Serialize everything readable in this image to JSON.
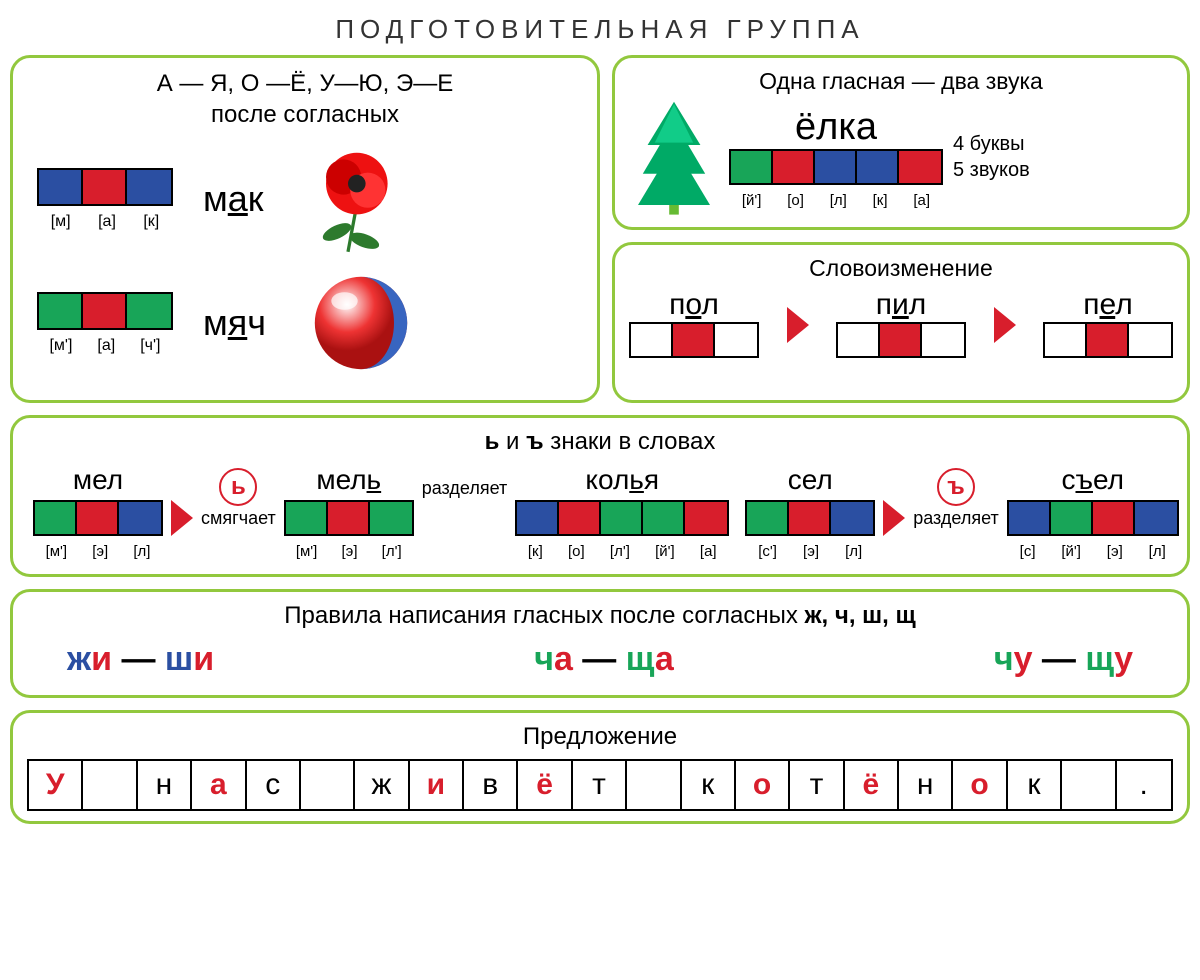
{
  "colors": {
    "border_green": "#92c83e",
    "blue": "#2b4fa2",
    "red": "#d81e2c",
    "green": "#18a558",
    "teal": "#0f8a6f",
    "white": "#ffffff",
    "black": "#000000"
  },
  "title": "ПОДГОТОВИТЕЛЬНАЯ ГРУППА",
  "panel1": {
    "heading_l1": "А — Я, О —Ё, У—Ю, Э—Е",
    "heading_l2": "после согласных",
    "row1": {
      "word_pre": "м",
      "word_u": "а",
      "word_post": "к",
      "cells": [
        "#2b4fa2",
        "#d81e2c",
        "#2b4fa2"
      ],
      "sounds": [
        "[м]",
        "[а]",
        "[к]"
      ]
    },
    "row2": {
      "word_pre": "м",
      "word_u": "я",
      "word_post": "ч",
      "cells": [
        "#18a558",
        "#d81e2c",
        "#18a558"
      ],
      "sounds": [
        "[м']",
        "[а]",
        "[ч']"
      ]
    }
  },
  "panel2": {
    "heading": "Одна гласная — два звука",
    "word": "ёлка",
    "cells": [
      "#18a558",
      "#d81e2c",
      "#2b4fa2",
      "#2b4fa2",
      "#d81e2c"
    ],
    "sounds": [
      "[й']",
      "[о]",
      "[л]",
      "[к]",
      "[а]"
    ],
    "info_l1": "4 буквы",
    "info_l2": "5 звуков"
  },
  "panel3": {
    "heading": "Словоизменение",
    "items": [
      {
        "pre": "п",
        "u": "о",
        "post": "л",
        "cells": [
          "#ffffff",
          "#d81e2c",
          "#ffffff"
        ]
      },
      {
        "pre": "п",
        "u": "и",
        "post": "л",
        "cells": [
          "#ffffff",
          "#d81e2c",
          "#ffffff"
        ]
      },
      {
        "pre": "п",
        "u": "е",
        "post": "л",
        "cells": [
          "#ffffff",
          "#d81e2c",
          "#ffffff"
        ]
      }
    ]
  },
  "panel4": {
    "heading_pre": "",
    "heading_b1": "ь",
    "heading_mid": " и ",
    "heading_b2": "ъ",
    "heading_post": " знаки в словах",
    "soft": {
      "letter": "ь",
      "label": "смягчает"
    },
    "sep1": {
      "label": "разделяет"
    },
    "hard": {
      "letter": "ъ",
      "label": "разделяет"
    },
    "words": [
      {
        "w": "мел",
        "u_idx": -1,
        "cells": [
          "#18a558",
          "#d81e2c",
          "#2b4fa2"
        ],
        "sounds": [
          "[м']",
          "[э]",
          "[л]"
        ]
      },
      {
        "w_pre": "мел",
        "w_u": "ь",
        "w_post": "",
        "cells": [
          "#18a558",
          "#d81e2c",
          "#18a558"
        ],
        "sounds": [
          "[м']",
          "[э]",
          "[л']"
        ]
      },
      {
        "w_pre": "кол",
        "w_u": "ь",
        "w_post": "я",
        "cells": [
          "#2b4fa2",
          "#d81e2c",
          "#18a558",
          "#18a558",
          "#d81e2c"
        ],
        "sounds": [
          "[к]",
          "[о]",
          "[л']",
          "[й']",
          "[а]"
        ]
      },
      {
        "w": "сел",
        "cells": [
          "#18a558",
          "#d81e2c",
          "#2b4fa2"
        ],
        "sounds": [
          "[с']",
          "[э]",
          "[л]"
        ]
      },
      {
        "w_pre": "с",
        "w_u": "ъ",
        "w_post": "ел",
        "cells": [
          "#2b4fa2",
          "#18a558",
          "#d81e2c",
          "#2b4fa2"
        ],
        "sounds": [
          "[с]",
          "[й']",
          "[э]",
          "[л]"
        ]
      }
    ]
  },
  "panel5": {
    "heading_pre": "Правила написания гласных после согласных ",
    "heading_bold": "ж, ч, ш, щ",
    "pairs": [
      {
        "parts": [
          {
            "t": "ж",
            "c": "#2b4fa2"
          },
          {
            "t": "и",
            "c": "#d81e2c"
          },
          {
            "t": " — ",
            "c": "#000"
          },
          {
            "t": "ш",
            "c": "#2b4fa2"
          },
          {
            "t": "и",
            "c": "#d81e2c"
          }
        ]
      },
      {
        "parts": [
          {
            "t": "ч",
            "c": "#18a558"
          },
          {
            "t": "а",
            "c": "#d81e2c"
          },
          {
            "t": " — ",
            "c": "#000"
          },
          {
            "t": "щ",
            "c": "#18a558"
          },
          {
            "t": "а",
            "c": "#d81e2c"
          }
        ]
      },
      {
        "parts": [
          {
            "t": "ч",
            "c": "#18a558"
          },
          {
            "t": "у",
            "c": "#d81e2c"
          },
          {
            "t": " — ",
            "c": "#000"
          },
          {
            "t": "щ",
            "c": "#18a558"
          },
          {
            "t": "у",
            "c": "#d81e2c"
          }
        ]
      }
    ]
  },
  "panel6": {
    "heading": "Предложение",
    "cells": [
      {
        "t": "У",
        "v": true,
        "cap": true
      },
      {
        "t": ""
      },
      {
        "t": "н"
      },
      {
        "t": "а",
        "v": true
      },
      {
        "t": "с"
      },
      {
        "t": ""
      },
      {
        "t": "ж"
      },
      {
        "t": "и",
        "v": true
      },
      {
        "t": "в"
      },
      {
        "t": "ё",
        "v": true
      },
      {
        "t": "т"
      },
      {
        "t": ""
      },
      {
        "t": "к"
      },
      {
        "t": "о",
        "v": true
      },
      {
        "t": "т"
      },
      {
        "t": "ё",
        "v": true
      },
      {
        "t": "н"
      },
      {
        "t": "о",
        "v": true
      },
      {
        "t": "к"
      },
      {
        "t": ""
      },
      {
        "t": "."
      }
    ]
  }
}
